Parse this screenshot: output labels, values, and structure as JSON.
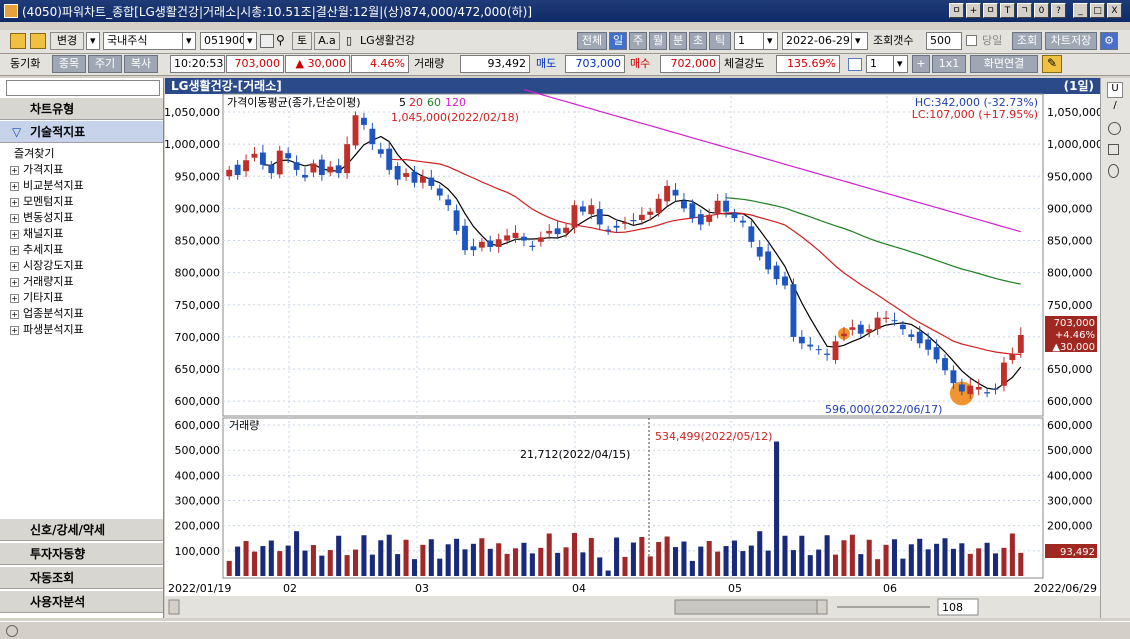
{
  "window": {
    "title": "(4050)파워차트_종합[LG생활건강|거래소|시총:10.51조|결산월:12월|(상)874,000/472,000(하)]",
    "controls": [
      "ㅁ",
      "+",
      "ㅁ",
      "T",
      "ㄱ",
      "0",
      "?",
      "_",
      "□",
      "X"
    ]
  },
  "toolbar1": {
    "change_label": "변경",
    "market": "국내주식",
    "code": "051900",
    "btn_t": "토",
    "btn_aa": "A.a",
    "stock_name": "LG생활건강",
    "period_buttons": [
      "전체",
      "일",
      "주",
      "월",
      "분",
      "초",
      "틱"
    ],
    "period_selected": "일",
    "period_count": "1",
    "date": "2022-06-29",
    "count_label": "조회갯수",
    "count_value": "500",
    "same_day_label": "당일",
    "query_btn": "조회",
    "save_btn": "차트저장"
  },
  "toolbar2": {
    "sync_label": "동기화",
    "tabs": [
      "종목",
      "주기",
      "복사"
    ],
    "time": "10:20:53",
    "price": "703,000",
    "change": "▲ 30,000",
    "change_pct": "4.46%",
    "volume_label": "거래량",
    "volume": "93,492",
    "ask_label": "매도",
    "ask": "703,000",
    "bid_label": "매수",
    "bid": "702,000",
    "strength_label": "체결강도",
    "strength": "135.69%",
    "layout_num": "1",
    "plus": "+",
    "ratio": "1x1",
    "screen_link": "화면연결"
  },
  "left_panel": {
    "chart_type": "차트유형",
    "indicator_header": "기술적지표",
    "favorites": "즐겨찾기",
    "items": [
      "가격지표",
      "비교분석지표",
      "모멘텀지표",
      "변동성지표",
      "채널지표",
      "추세지표",
      "시장강도지표",
      "거래량지표",
      "기타지표",
      "업종분석지표",
      "파생분석지표"
    ],
    "bottom": [
      "신호/강세/약세",
      "투자자동향",
      "자동조회",
      "사용자분석"
    ]
  },
  "chart": {
    "header_title": "LG생활건강-[거래소]",
    "header_period": "(1일)",
    "ma_label": "가격이동평균(종가,단순이평)",
    "ma_periods": [
      "5",
      "20",
      "60",
      "120"
    ],
    "ma_colors": [
      "#000000",
      "#d02020",
      "#208020",
      "#d020d0"
    ],
    "hc": "HC:342,000 (-32.73%)",
    "lc": "LC:107,000 (+17.95%)",
    "high_annot": "1,045,000(2022/02/18)",
    "low_annot": "596,000(2022/06/17)",
    "price_ticks": [
      "1,050,000",
      "1,000,000",
      "950,000",
      "900,000",
      "850,000",
      "800,000",
      "750,000",
      "700,000",
      "650,000",
      "600,000"
    ],
    "price_ticks_right": [
      "1,050,000",
      "1,000,000",
      "950,000",
      "900,000",
      "850,000",
      "800,000",
      "750,000",
      "700,000",
      "650,000",
      "600,000"
    ],
    "last_price_tag": [
      "703,000",
      "+4.46%",
      "▲30,000"
    ],
    "volume_label": "거래량",
    "volume_ticks": [
      "600,000",
      "500,000",
      "400,000",
      "300,000",
      "200,000",
      "100,000"
    ],
    "vol_annot1": "534,499(2022/05/12)",
    "vol_annot2": "21,712(2022/04/15)",
    "vol_tag": "93,492",
    "x_labels": [
      "2022/01/19",
      "02",
      "03",
      "04",
      "05",
      "06",
      "2022/06/29"
    ],
    "zoom_value": "108"
  },
  "colors": {
    "up": "#c0302a",
    "down": "#1f55c0",
    "header_bg": "#2a4a8a"
  },
  "chart_data": {
    "type": "candlestick",
    "ylim": [
      580000,
      1075000
    ],
    "close": [
      960000,
      952000,
      975000,
      985000,
      968000,
      955000,
      990000,
      978000,
      960000,
      948000,
      970000,
      952000,
      965000,
      955000,
      1000000,
      1045000,
      1030000,
      1000000,
      985000,
      960000,
      945000,
      955000,
      940000,
      950000,
      935000,
      920000,
      905000,
      865000,
      835000,
      835000,
      848000,
      840000,
      852000,
      858000,
      862000,
      850000,
      840000,
      855000,
      865000,
      860000,
      870000,
      905000,
      895000,
      905000,
      875000,
      865000,
      870000,
      878000,
      880000,
      890000,
      895000,
      915000,
      935000,
      920000,
      900000,
      885000,
      875000,
      890000,
      912000,
      895000,
      885000,
      878000,
      848000,
      825000,
      805000,
      790000,
      780000,
      700000,
      690000,
      685000,
      680000,
      672000,
      693000,
      705000,
      715000,
      705000,
      712000,
      730000,
      730000,
      725000,
      712000,
      700000,
      690000,
      680000,
      665000,
      648000,
      628000,
      615000,
      624000,
      622000,
      612000,
      618000,
      660000,
      673000,
      703000
    ]
  }
}
